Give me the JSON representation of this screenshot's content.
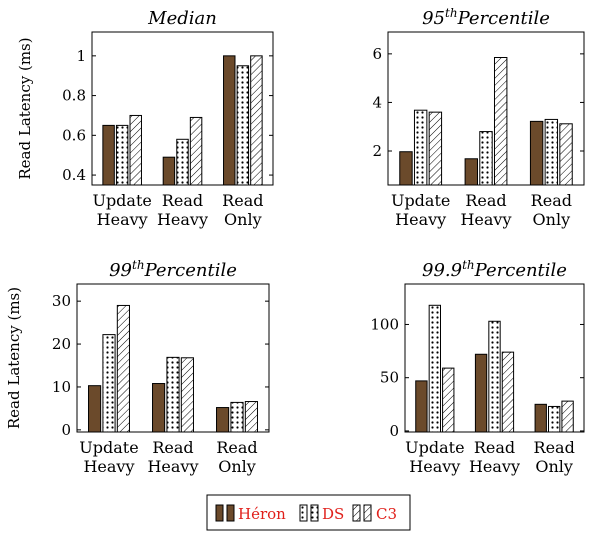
{
  "colors": {
    "heron": "#6b4a2b",
    "legend_text": "#e0201b"
  },
  "legend": {
    "items": [
      "Héron",
      "DS",
      "C3"
    ]
  },
  "chart_data": [
    {
      "type": "bar",
      "title_main": "Median",
      "title_sup": "",
      "ylabel": "Read Latency (ms)",
      "ylim": [
        0.35,
        1.12
      ],
      "yticks": [
        0.4,
        0.6,
        0.8,
        1
      ],
      "yticklabels": [
        "0.4",
        "0.6",
        "0.8",
        "1"
      ],
      "categories": [
        [
          "Update",
          "Heavy"
        ],
        [
          "Read",
          "Heavy"
        ],
        [
          "Read",
          "Only"
        ]
      ],
      "series": [
        {
          "name": "Héron",
          "values": [
            0.65,
            0.49,
            1.0
          ]
        },
        {
          "name": "DS",
          "values": [
            0.65,
            0.58,
            0.95
          ]
        },
        {
          "name": "C3",
          "values": [
            0.7,
            0.69,
            1.0
          ]
        }
      ]
    },
    {
      "type": "bar",
      "title_main": "95",
      "title_sup": "th",
      "title_rest": "Percentile",
      "ylabel": "",
      "ylim": [
        0.6,
        6.9
      ],
      "yticks": [
        2,
        4,
        6
      ],
      "yticklabels": [
        "2",
        "4",
        "6"
      ],
      "categories": [
        [
          "Update",
          "Heavy"
        ],
        [
          "Read",
          "Heavy"
        ],
        [
          "Read",
          "Only"
        ]
      ],
      "series": [
        {
          "name": "Héron",
          "values": [
            1.97,
            1.68,
            3.22
          ]
        },
        {
          "name": "DS",
          "values": [
            3.68,
            2.8,
            3.3
          ]
        },
        {
          "name": "C3",
          "values": [
            3.6,
            5.85,
            3.12
          ]
        }
      ]
    },
    {
      "type": "bar",
      "title_main": "99",
      "title_sup": "th",
      "title_rest": "Percentile",
      "ylabel": "Read Latency (ms)",
      "ylim": [
        -0.5,
        34
      ],
      "yticks": [
        0,
        10,
        20,
        30
      ],
      "yticklabels": [
        "0",
        "10",
        "20",
        "30"
      ],
      "categories": [
        [
          "Update",
          "Heavy"
        ],
        [
          "Read",
          "Heavy"
        ],
        [
          "Read",
          "Only"
        ]
      ],
      "series": [
        {
          "name": "Héron",
          "values": [
            10.3,
            10.8,
            5.2
          ]
        },
        {
          "name": "DS",
          "values": [
            22.2,
            16.9,
            6.4
          ]
        },
        {
          "name": "C3",
          "values": [
            29.0,
            16.8,
            6.6
          ]
        }
      ]
    },
    {
      "type": "bar",
      "title_main": "99.9",
      "title_sup": "th",
      "title_rest": "Percentile",
      "ylabel": "",
      "ylim": [
        -1,
        138
      ],
      "yticks": [
        0,
        50,
        100
      ],
      "yticklabels": [
        "0",
        "50",
        "100"
      ],
      "categories": [
        [
          "Update",
          "Heavy"
        ],
        [
          "Read",
          "Heavy"
        ],
        [
          "Read",
          "Only"
        ]
      ],
      "series": [
        {
          "name": "Héron",
          "values": [
            47,
            72,
            25
          ]
        },
        {
          "name": "DS",
          "values": [
            118,
            103,
            23
          ]
        },
        {
          "name": "C3",
          "values": [
            59,
            74,
            28
          ]
        }
      ]
    }
  ]
}
